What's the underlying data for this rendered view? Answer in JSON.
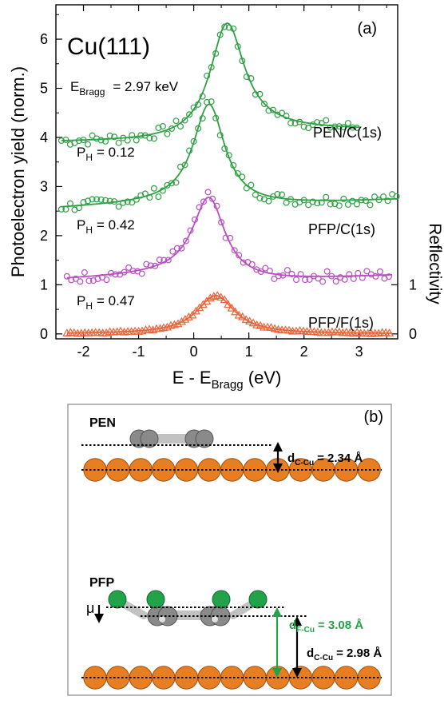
{
  "chart_data": {
    "type": "scatter",
    "panel_label": "(a)",
    "sample": "Cu(111)",
    "energy": {
      "main": "E",
      "sub": "Bragg",
      "rest": "= 2.97 keV"
    },
    "xlabel": {
      "main": "E - E",
      "sub": "Bragg",
      "rest": " (eV)"
    },
    "ylabel": "Photoelectron yield (norm.)",
    "y2label": "Reflectivity",
    "xlim": [
      -2.5,
      3.7
    ],
    "ylim": [
      -0.1,
      6.7
    ],
    "xticks": [
      "-2",
      "-1",
      "0",
      "1",
      "2",
      "3"
    ],
    "yticks": [
      "0",
      "1",
      "2",
      "3",
      "4",
      "5",
      "6"
    ],
    "y2ticks": [
      "0",
      "1"
    ],
    "grid": false,
    "colors": {
      "green": "#2ea043",
      "purple": "#b84fc0",
      "orange": "#e8653a"
    },
    "series": [
      {
        "name": "PEN/C(1s)",
        "color": "#2ea043",
        "marker": "circle",
        "ph_main": "P",
        "ph_sub": "H",
        "ph_val": "= 0.12",
        "x_start": -2.4,
        "x_end": 3.0,
        "curve": {
          "baseline": 3.9,
          "slope": 0.0,
          "amplitude": 2.3,
          "center": 0.6,
          "width": 0.38,
          "tail": 0.25
        }
      },
      {
        "name": "PFP/C(1s)",
        "color": "#2ea043",
        "marker": "circle",
        "ph_main": "P",
        "ph_sub": "H",
        "ph_val": "= 0.42",
        "x_start": -2.4,
        "x_end": 3.7,
        "curve": {
          "baseline": 2.55,
          "slope": 0.05,
          "amplitude": 2.05,
          "center": 0.28,
          "width": 0.35,
          "tail": -0.13
        }
      },
      {
        "name": "PFP/F(1s)",
        "color": "#b84fc0",
        "marker": "circle",
        "ph_main": "P",
        "ph_sub": "H",
        "ph_val": "= 0.47",
        "x_start": -2.3,
        "x_end": 3.6,
        "curve": {
          "baseline": 1.1,
          "slope": 0.05,
          "amplitude": 1.65,
          "center": 0.28,
          "width": 0.36,
          "tail": -0.22
        }
      },
      {
        "name": "",
        "color": "#e8653a",
        "marker": "triangle",
        "x_start": -2.3,
        "x_end": 3.6,
        "curve": {
          "baseline": 0.0,
          "slope": 0.0,
          "amplitude": 0.78,
          "center": 0.4,
          "width": 0.42,
          "tail": 0.0
        }
      }
    ]
  },
  "diagram": {
    "panel_label": "(b)",
    "pen_label": "PEN",
    "pfp_label": "PFP",
    "mu_label": "μ",
    "d_pen": {
      "main": "d",
      "sub": "C-Cu",
      "value": "= 2.34 Å"
    },
    "d_pfp_f": {
      "main": "d",
      "sub": "F-Cu",
      "value": "= 3.08 Å"
    },
    "d_pfp_c": {
      "main": "d",
      "sub": "C-Cu",
      "value": "= 2.98 Å"
    },
    "copper_atoms_per_row": 13,
    "colors": {
      "copper": "#e87e22",
      "carbon": "#8a8a8a",
      "fluorine": "#22a24a",
      "arrow_green": "#22a24a"
    }
  }
}
